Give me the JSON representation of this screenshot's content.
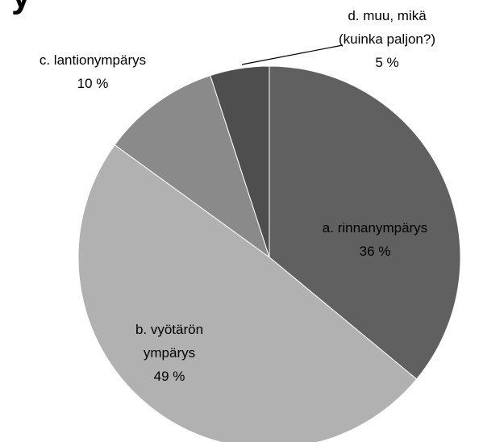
{
  "chart_data": {
    "type": "pie",
    "title": "y",
    "categories": [
      "a. rinnanympärys",
      "b. vyötärön ympärys",
      "c. lantionympärys",
      "d. muu, mikä (kuinka paljon?)"
    ],
    "values": [
      36,
      49,
      10,
      5
    ],
    "value_labels": [
      "36 %",
      "49 %",
      "10 %",
      "5 %"
    ],
    "colors": [
      "#606060",
      "#b1b1b1",
      "#8a8a8a",
      "#4e4e4e"
    ]
  }
}
